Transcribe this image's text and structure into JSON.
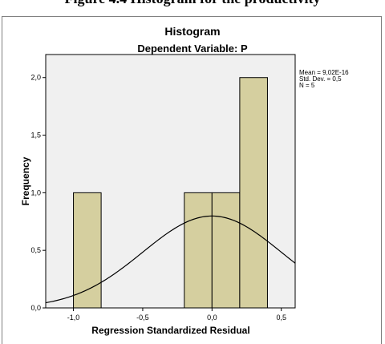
{
  "top_caption": "Figure 4.4 Histogram for the productivity",
  "chart_data": {
    "type": "bar",
    "title": "Histogram",
    "subtitle": "Dependent Variable: P",
    "xlabel": "Regression Standardized Residual",
    "ylabel": "Frequency",
    "xlim": [
      -1.2,
      0.6
    ],
    "ylim": [
      0,
      2.2
    ],
    "x_ticks": [
      -1.0,
      -0.5,
      0.0,
      0.5
    ],
    "x_tick_labels": [
      "-1,0",
      "-0,5",
      "0,0",
      "0,5"
    ],
    "y_ticks": [
      0,
      0.5,
      1.0,
      1.5,
      2.0
    ],
    "y_tick_labels": [
      "0,0",
      "0,5",
      "1,0",
      "1,5",
      "2,0"
    ],
    "bins": [
      {
        "start": -1.0,
        "end": -0.8,
        "count": 1
      },
      {
        "start": -0.2,
        "end": 0.0,
        "count": 1
      },
      {
        "start": 0.0,
        "end": 0.2,
        "count": 1
      },
      {
        "start": 0.2,
        "end": 0.4,
        "count": 2
      }
    ],
    "normal_curve": {
      "mean": 0,
      "sd": 0.5,
      "n": 5,
      "bin_width": 0.2
    },
    "stats": {
      "mean": "Mean = 9,02E-16",
      "std_dev": "Std. Dev. = 0,5",
      "n": "N = 5"
    },
    "colors": {
      "bar_fill": "#d5cf9f",
      "bar_stroke": "#000000",
      "plot_bg": "#f0f0f0",
      "curve": "#000000"
    },
    "grid": false
  }
}
